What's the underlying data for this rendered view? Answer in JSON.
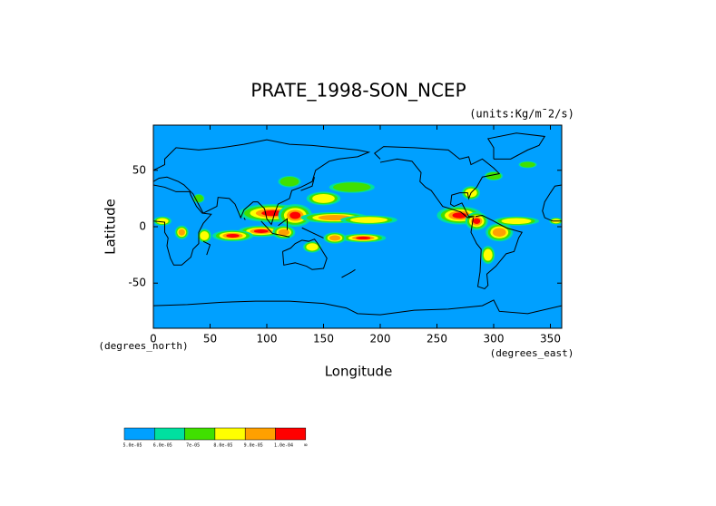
{
  "chart_data": {
    "type": "map",
    "title": "PRATE_1998-SON_NCEP",
    "units": "(units:Kg/m¯2/s)",
    "x_label": "Longitude",
    "y_label": "Latitude",
    "x_unit_label": "(degrees_east)",
    "y_unit_label": "(degrees_north)",
    "xlim": [
      0,
      360
    ],
    "ylim": [
      -90,
      90
    ],
    "xticks": [
      0,
      50,
      100,
      150,
      200,
      250,
      300,
      350
    ],
    "yticks": [
      -50,
      0,
      50
    ],
    "colorbar": {
      "colors": [
        "#00a0ff",
        "#00e0a0",
        "#40e000",
        "#ffff00",
        "#ffa000",
        "#ff0000"
      ],
      "ticks": [
        {
          "value": 5e-05,
          "label": "5.0e-05"
        },
        {
          "value": 6e-05,
          "label": "6.0e-05"
        },
        {
          "value": 7e-05,
          "label": "7e-05"
        },
        {
          "value": 8e-05,
          "label": "8.0e-05"
        },
        {
          "value": 9e-05,
          "label": "9.0e-05"
        },
        {
          "value": 0.0001,
          "label": "1.0e-04"
        }
      ],
      "end_label": "∞"
    }
  }
}
